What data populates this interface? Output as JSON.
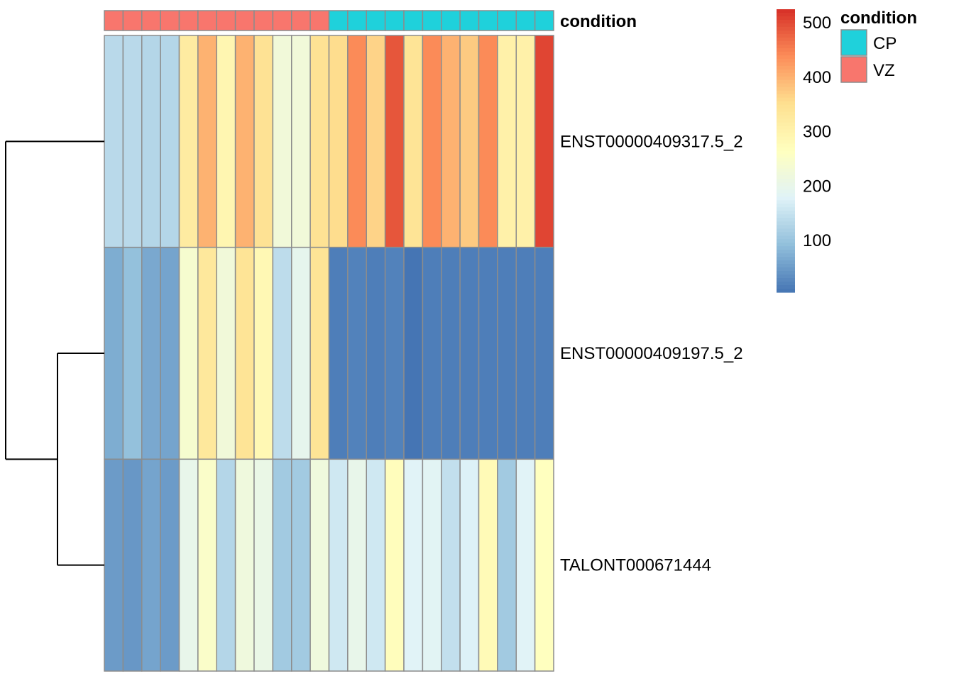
{
  "chart_data": {
    "type": "heatmap",
    "rows": [
      "ENST00000409317.5_2",
      "ENST00000409197.5_2",
      "TALONT000671444"
    ],
    "column_annotation": {
      "name": "condition",
      "values": [
        "VZ",
        "VZ",
        "VZ",
        "VZ",
        "VZ",
        "VZ",
        "VZ",
        "VZ",
        "VZ",
        "VZ",
        "VZ",
        "VZ",
        "CP",
        "CP",
        "CP",
        "CP",
        "CP",
        "CP",
        "CP",
        "CP",
        "CP",
        "CP",
        "CP",
        "CP"
      ]
    },
    "values": [
      [
        135,
        135,
        130,
        130,
        320,
        400,
        290,
        400,
        345,
        225,
        225,
        345,
        355,
        440,
        365,
        490,
        340,
        440,
        400,
        375,
        440,
        305,
        305,
        505
      ],
      [
        70,
        95,
        65,
        60,
        240,
        330,
        225,
        340,
        285,
        140,
        195,
        340,
        15,
        20,
        15,
        20,
        5,
        15,
        15,
        15,
        15,
        15,
        15,
        15
      ],
      [
        50,
        45,
        60,
        50,
        200,
        250,
        130,
        220,
        205,
        110,
        110,
        220,
        160,
        200,
        160,
        270,
        180,
        185,
        145,
        175,
        280,
        110,
        180,
        265
      ]
    ],
    "color_scale": {
      "min": 5,
      "max": 525,
      "ticks": [
        100,
        200,
        300,
        400,
        500
      ],
      "colors": [
        "#4575B4",
        "#91BFDB",
        "#E0F3F8",
        "#FFFFBF",
        "#FEE090",
        "#FC8D59",
        "#D73027"
      ]
    },
    "annotation_colors": {
      "CP": "#1FD1DB",
      "VZ": "#F8766D"
    },
    "legend": {
      "title": "condition",
      "items": [
        "CP",
        "VZ"
      ],
      "placement": "top-right"
    },
    "row_dendrogram": true
  }
}
